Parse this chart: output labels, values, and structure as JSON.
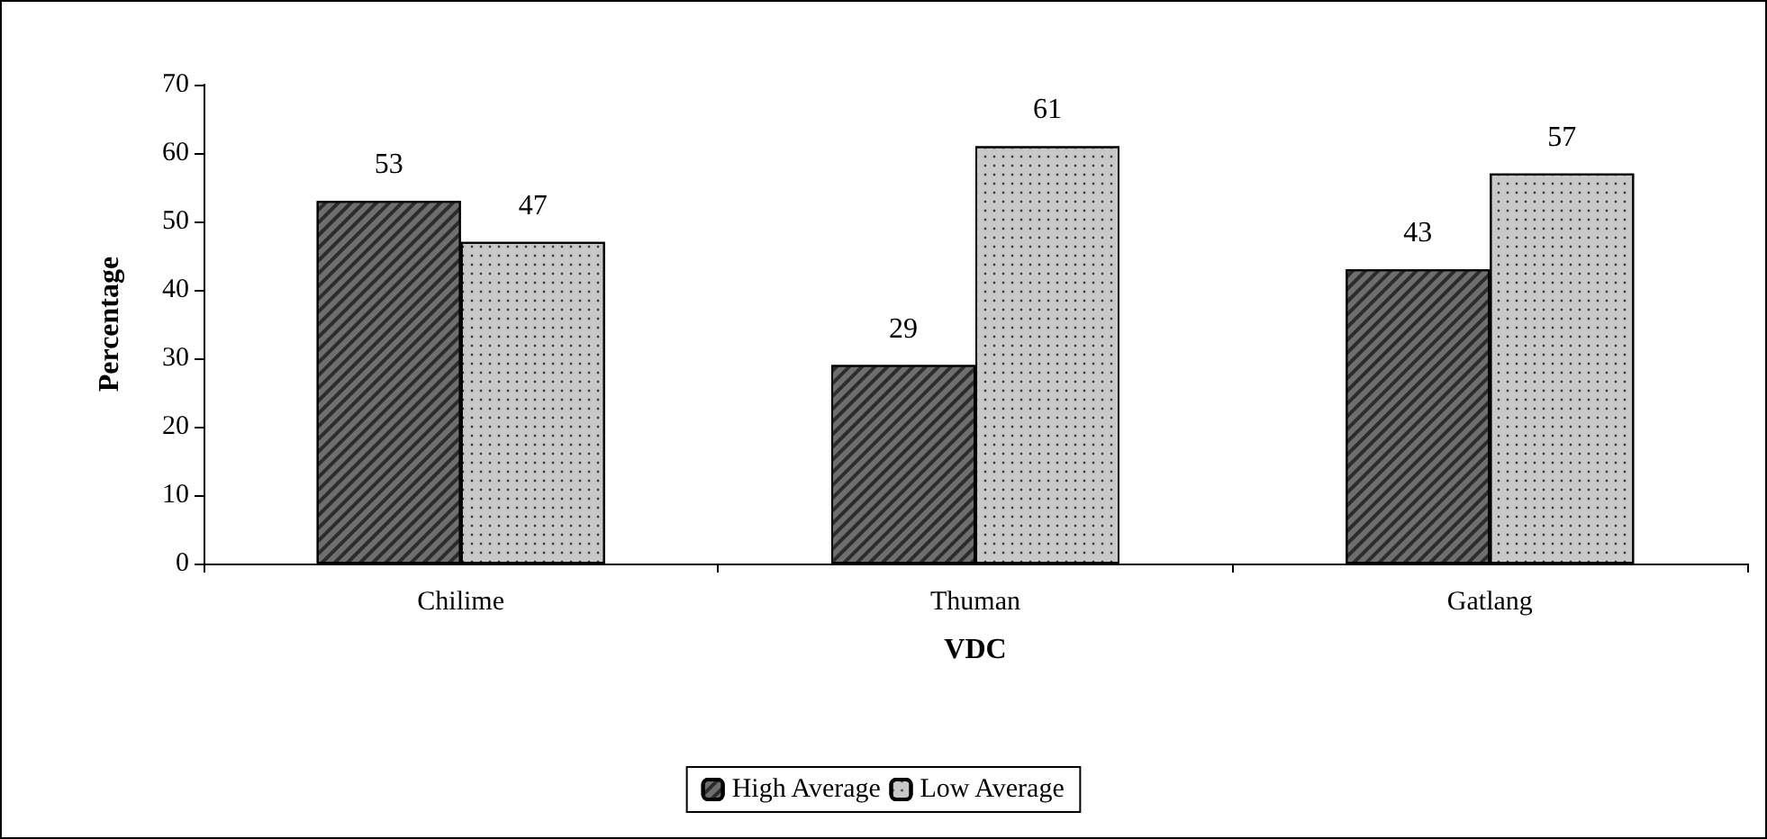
{
  "chart_data": {
    "type": "bar",
    "xlabel": "VDC",
    "ylabel": "Percentage",
    "categories": [
      "Chilime",
      "Thuman",
      "Gatlang"
    ],
    "series": [
      {
        "name": "High Average",
        "color": "#6e6e6e",
        "values": [
          53,
          29,
          43
        ]
      },
      {
        "name": "Low Average",
        "color": "#c8c8c8",
        "values": [
          47,
          61,
          57
        ]
      }
    ],
    "ylim": [
      0,
      70
    ],
    "yticks": [
      0,
      10,
      20,
      30,
      40,
      50,
      60,
      70
    ],
    "data_labels": true,
    "legend": "bottom",
    "grid": false
  }
}
